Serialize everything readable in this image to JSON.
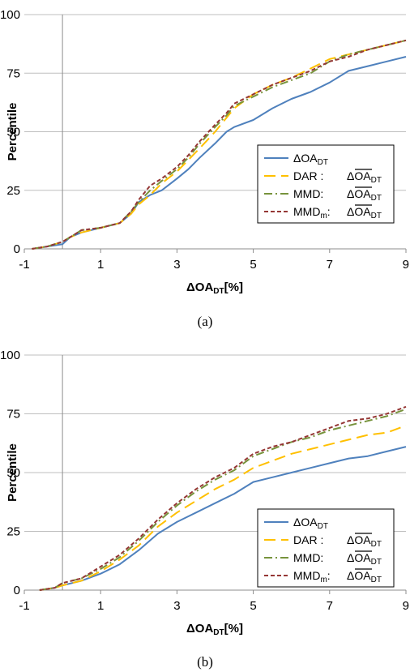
{
  "chart_data": [
    {
      "type": "line",
      "caption": "(a)",
      "ylabel": "Percentile",
      "xlabel": {
        "main": "ΔOA",
        "sub": "DT",
        "suffix": "[%]"
      },
      "xlim": [
        -1,
        9
      ],
      "ylim": [
        0,
        100
      ],
      "x_ticks": [
        -1,
        1,
        3,
        5,
        7,
        9
      ],
      "y_ticks": [
        0,
        25,
        50,
        75,
        100
      ],
      "grid": "horizontal",
      "legend_position": "center-right",
      "series": [
        {
          "name": "ΔOA_DT",
          "label_main": "ΔOA",
          "label_sub": "DT",
          "label_prefix": "",
          "overline": false,
          "color": "#4f81bd",
          "dash": "solid",
          "x": [
            -0.8,
            -0.4,
            0.0,
            0.2,
            0.5,
            1.0,
            1.5,
            1.8,
            2.0,
            2.3,
            2.6,
            3.0,
            3.3,
            3.6,
            4.0,
            4.3,
            4.5,
            5.0,
            5.5,
            6.0,
            6.5,
            7.0,
            7.5,
            8.0,
            8.5,
            9.0
          ],
          "y": [
            0,
            1,
            2,
            5,
            7,
            9,
            11,
            15,
            20,
            23,
            25,
            30,
            34,
            39,
            45,
            50,
            52,
            55,
            60,
            64,
            67,
            71,
            76,
            78,
            80,
            82
          ]
        },
        {
          "name": "DAR : ΔOA_DT",
          "label_prefix": "DAR :",
          "label_main": "ΔOA",
          "label_sub": "DT",
          "overline": true,
          "color": "#ffc000",
          "dash": "longdash",
          "x": [
            -0.8,
            -0.4,
            0.0,
            0.2,
            0.5,
            1.0,
            1.5,
            1.8,
            2.0,
            2.3,
            2.6,
            3.0,
            3.3,
            3.6,
            4.0,
            4.3,
            4.5,
            5.0,
            5.5,
            6.0,
            6.5,
            7.0,
            7.5,
            8.0,
            8.5,
            9.0
          ],
          "y": [
            0,
            1,
            3,
            5,
            7,
            9,
            11,
            15,
            19,
            23,
            28,
            33,
            38,
            43,
            50,
            56,
            60,
            66,
            70,
            73,
            77,
            81,
            83,
            85,
            87,
            89
          ]
        },
        {
          "name": "MMD: ΔOA_DT",
          "label_prefix": "MMD:",
          "label_main": "ΔOA",
          "label_sub": "DT",
          "overline": true,
          "color": "#77933c",
          "dash": "dashdot",
          "x": [
            -0.8,
            -0.4,
            0.0,
            0.2,
            0.5,
            1.0,
            1.5,
            1.8,
            2.0,
            2.3,
            2.6,
            3.0,
            3.3,
            3.6,
            4.0,
            4.3,
            4.5,
            5.0,
            5.5,
            6.0,
            6.5,
            7.0,
            7.5,
            8.0,
            8.5,
            9.0
          ],
          "y": [
            0,
            1,
            3,
            5,
            8,
            9,
            11,
            16,
            20,
            25,
            29,
            34,
            39,
            45,
            52,
            57,
            61,
            65,
            69,
            72,
            75,
            80,
            83,
            85,
            87,
            89
          ]
        },
        {
          "name": "MMD_m: ΔOA_DT",
          "label_prefix": "MMD",
          "label_prefix_sub": "m",
          "label_prefix_tail": ":",
          "label_main": "ΔOA",
          "label_sub": "DT",
          "overline": true,
          "color": "#953735",
          "dash": "dash",
          "x": [
            -0.8,
            -0.4,
            0.0,
            0.2,
            0.5,
            1.0,
            1.5,
            1.8,
            2.0,
            2.3,
            2.6,
            3.0,
            3.3,
            3.6,
            4.0,
            4.3,
            4.5,
            5.0,
            5.5,
            6.0,
            6.5,
            7.0,
            7.5,
            8.0,
            8.5,
            9.0
          ],
          "y": [
            0,
            1,
            3,
            5,
            8,
            9,
            11,
            16,
            21,
            27,
            30,
            35,
            40,
            46,
            53,
            58,
            62,
            66,
            70,
            73,
            76,
            80,
            82,
            85,
            87,
            89
          ]
        }
      ]
    },
    {
      "type": "line",
      "caption": "(b)",
      "ylabel": "Percentile",
      "xlabel": {
        "main": "ΔOA",
        "sub": "DT",
        "suffix": "[%]"
      },
      "xlim": [
        -1,
        9
      ],
      "ylim": [
        0,
        100
      ],
      "x_ticks": [
        -1,
        1,
        3,
        5,
        7,
        9
      ],
      "y_ticks": [
        0,
        25,
        50,
        75,
        100
      ],
      "grid": "horizontal",
      "legend_position": "bottom-right",
      "series": [
        {
          "name": "ΔOA_DT",
          "label_main": "ΔOA",
          "label_sub": "DT",
          "label_prefix": "",
          "overline": false,
          "color": "#4f81bd",
          "dash": "solid",
          "x": [
            -0.6,
            -0.2,
            0.0,
            0.5,
            1.0,
            1.5,
            2.0,
            2.5,
            3.0,
            3.5,
            4.0,
            4.5,
            5.0,
            5.5,
            6.0,
            6.5,
            7.0,
            7.5,
            8.0,
            8.5,
            9.0
          ],
          "y": [
            0,
            1,
            2,
            4,
            7,
            11,
            17,
            24,
            29,
            33,
            37,
            41,
            46,
            48,
            50,
            52,
            54,
            56,
            57,
            59,
            61
          ]
        },
        {
          "name": "DAR : ΔOA_DT",
          "label_prefix": "DAR :",
          "label_main": "ΔOA",
          "label_sub": "DT",
          "overline": true,
          "color": "#ffc000",
          "dash": "longdash",
          "x": [
            -0.6,
            -0.2,
            0.0,
            0.5,
            1.0,
            1.5,
            2.0,
            2.5,
            3.0,
            3.5,
            4.0,
            4.5,
            5.0,
            5.5,
            6.0,
            6.5,
            7.0,
            7.5,
            8.0,
            8.5,
            9.0
          ],
          "y": [
            0,
            1,
            2,
            4,
            8,
            13,
            19,
            27,
            33,
            38,
            43,
            47,
            52,
            55,
            58,
            60,
            62,
            64,
            66,
            67,
            70
          ]
        },
        {
          "name": "MMD: ΔOA_DT",
          "label_prefix": "MMD:",
          "label_main": "ΔOA",
          "label_sub": "DT",
          "overline": true,
          "color": "#77933c",
          "dash": "dashdot",
          "x": [
            -0.6,
            -0.2,
            0.0,
            0.5,
            1.0,
            1.5,
            2.0,
            2.5,
            3.0,
            3.5,
            4.0,
            4.5,
            5.0,
            5.5,
            6.0,
            6.5,
            7.0,
            7.5,
            8.0,
            8.5,
            9.0
          ],
          "y": [
            0,
            1,
            3,
            5,
            9,
            14,
            21,
            29,
            36,
            42,
            47,
            51,
            57,
            60,
            63,
            65,
            68,
            70,
            72,
            74,
            77
          ]
        },
        {
          "name": "MMD_m: ΔOA_DT",
          "label_prefix": "MMD",
          "label_prefix_sub": "m",
          "label_prefix_tail": ":",
          "label_main": "ΔOA",
          "label_sub": "DT",
          "overline": true,
          "color": "#953735",
          "dash": "dash",
          "x": [
            -0.6,
            -0.2,
            0.0,
            0.5,
            1.0,
            1.5,
            2.0,
            2.5,
            3.0,
            3.5,
            4.0,
            4.5,
            5.0,
            5.5,
            6.0,
            6.5,
            7.0,
            7.5,
            8.0,
            8.5,
            9.0
          ],
          "y": [
            0,
            1,
            3,
            5,
            10,
            15,
            22,
            30,
            37,
            43,
            48,
            52,
            58,
            61,
            63,
            66,
            69,
            72,
            73,
            75,
            78
          ]
        }
      ]
    }
  ]
}
